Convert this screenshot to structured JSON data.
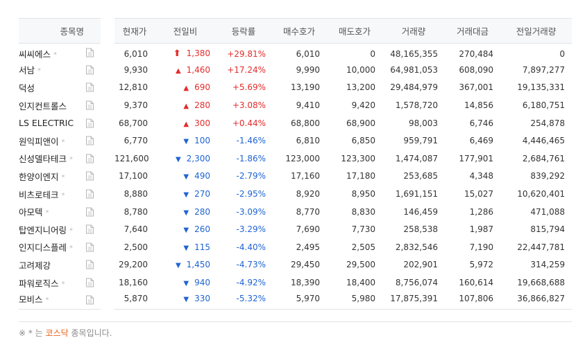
{
  "header": {
    "name": "종목명",
    "price": "현재가",
    "change": "전일비",
    "rate": "등락률",
    "bid": "매수호가",
    "ask": "매도호가",
    "volume": "거래량",
    "amount": "거래대금",
    "prev_volume": "전일거래량"
  },
  "rows": [
    {
      "name": "씨씨에스",
      "kosdaq": true,
      "price": "6,010",
      "dir": "upper",
      "change": "1,380",
      "rate": "+29.81%",
      "bid": "6,010",
      "ask": "0",
      "volume": "48,165,355",
      "amount": "270,484",
      "prev_volume": "0"
    },
    {
      "name": "서남",
      "kosdaq": true,
      "price": "9,930",
      "dir": "up",
      "change": "1,460",
      "rate": "+17.24%",
      "bid": "9,990",
      "ask": "10,000",
      "volume": "64,981,053",
      "amount": "608,090",
      "prev_volume": "7,897,277"
    },
    {
      "name": "덕성",
      "kosdaq": false,
      "price": "12,810",
      "dir": "up",
      "change": "690",
      "rate": "+5.69%",
      "bid": "13,190",
      "ask": "13,200",
      "volume": "29,484,979",
      "amount": "367,001",
      "prev_volume": "19,135,331"
    },
    {
      "name": "인지컨트롤스",
      "kosdaq": false,
      "price": "9,370",
      "dir": "up",
      "change": "280",
      "rate": "+3.08%",
      "bid": "9,410",
      "ask": "9,420",
      "volume": "1,578,720",
      "amount": "14,856",
      "prev_volume": "6,180,751"
    },
    {
      "name": "LS ELECTRIC",
      "kosdaq": false,
      "price": "68,700",
      "dir": "up",
      "change": "300",
      "rate": "+0.44%",
      "bid": "68,800",
      "ask": "68,900",
      "volume": "98,003",
      "amount": "6,746",
      "prev_volume": "254,878"
    },
    {
      "name": "원익피앤이",
      "kosdaq": true,
      "price": "6,770",
      "dir": "down",
      "change": "100",
      "rate": "-1.46%",
      "bid": "6,810",
      "ask": "6,850",
      "volume": "959,791",
      "amount": "6,469",
      "prev_volume": "4,446,465"
    },
    {
      "name": "신성델타테크",
      "kosdaq": true,
      "price": "121,600",
      "dir": "down",
      "change": "2,300",
      "rate": "-1.86%",
      "bid": "123,000",
      "ask": "123,300",
      "volume": "1,474,087",
      "amount": "177,901",
      "prev_volume": "2,684,761"
    },
    {
      "name": "한양이엔지",
      "kosdaq": true,
      "price": "17,100",
      "dir": "down",
      "change": "490",
      "rate": "-2.79%",
      "bid": "17,160",
      "ask": "17,180",
      "volume": "253,685",
      "amount": "4,348",
      "prev_volume": "839,292"
    },
    {
      "name": "비츠로테크",
      "kosdaq": true,
      "price": "8,880",
      "dir": "down",
      "change": "270",
      "rate": "-2.95%",
      "bid": "8,920",
      "ask": "8,950",
      "volume": "1,691,151",
      "amount": "15,027",
      "prev_volume": "10,620,401"
    },
    {
      "name": "아모텍",
      "kosdaq": true,
      "price": "8,780",
      "dir": "down",
      "change": "280",
      "rate": "-3.09%",
      "bid": "8,770",
      "ask": "8,830",
      "volume": "146,459",
      "amount": "1,286",
      "prev_volume": "471,088"
    },
    {
      "name": "탑엔지니어링",
      "kosdaq": true,
      "price": "7,640",
      "dir": "down",
      "change": "260",
      "rate": "-3.29%",
      "bid": "7,690",
      "ask": "7,730",
      "volume": "258,538",
      "amount": "1,987",
      "prev_volume": "815,794"
    },
    {
      "name": "인지디스플레",
      "kosdaq": true,
      "price": "2,500",
      "dir": "down",
      "change": "115",
      "rate": "-4.40%",
      "bid": "2,495",
      "ask": "2,505",
      "volume": "2,832,546",
      "amount": "7,190",
      "prev_volume": "22,447,781"
    },
    {
      "name": "고려제강",
      "kosdaq": false,
      "price": "29,200",
      "dir": "down",
      "change": "1,450",
      "rate": "-4.73%",
      "bid": "29,450",
      "ask": "29,500",
      "volume": "202,901",
      "amount": "5,972",
      "prev_volume": "314,259"
    },
    {
      "name": "파워로직스",
      "kosdaq": true,
      "price": "18,160",
      "dir": "down",
      "change": "940",
      "rate": "-4.92%",
      "bid": "18,390",
      "ask": "18,400",
      "volume": "8,756,074",
      "amount": "160,614",
      "prev_volume": "19,668,688"
    },
    {
      "name": "모비스",
      "kosdaq": true,
      "price": "5,870",
      "dir": "down",
      "change": "330",
      "rate": "-5.32%",
      "bid": "5,970",
      "ask": "5,980",
      "volume": "17,875,391",
      "amount": "107,806",
      "prev_volume": "36,866,827"
    }
  ],
  "kosdaq_mark": "*",
  "footnote": {
    "prefix": "※ * 는 ",
    "highlight": "코스닥",
    "suffix": " 종목입니다."
  },
  "colors": {
    "up": "#e32b2b",
    "down": "#1e63d3",
    "kosdaq": "#e8631a"
  },
  "icons": {
    "doc": "document-icon",
    "upper_limit": "upper-limit-arrow-icon",
    "up": "up-triangle-icon",
    "down": "down-triangle-icon"
  }
}
